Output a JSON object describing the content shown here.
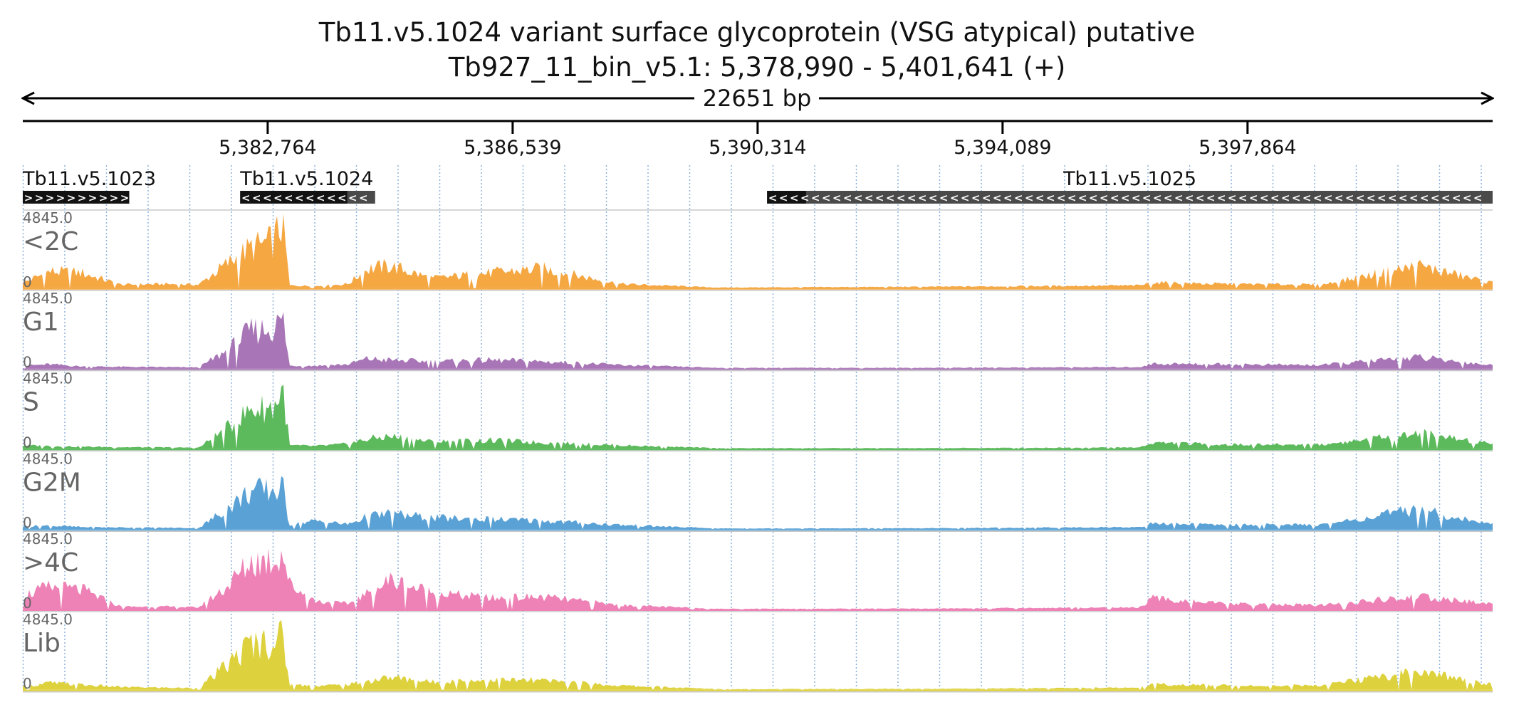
{
  "chart_data": {
    "type": "area",
    "title": "Tb11.v5.1024  variant surface glycoprotein (VSG  atypical)  putative",
    "subtitle": "Tb927_11_bin_v5.1: 5,378,990 - 5,401,641 (+)",
    "span_label": "22651 bp",
    "xlim": [
      5378990,
      5401641
    ],
    "ticks": [
      {
        "value": 5382764,
        "label": "5,382,764"
      },
      {
        "value": 5386539,
        "label": "5,386,539"
      },
      {
        "value": 5390314,
        "label": "5,390,314"
      },
      {
        "value": 5394089,
        "label": "5,394,089"
      },
      {
        "value": 5397864,
        "label": "5,397,864"
      }
    ],
    "genes": [
      {
        "name": "Tb11.v5.1023",
        "strand": "+",
        "start": 5378990,
        "end": 5380630,
        "cds_start": 5378990,
        "cds_end": 5380630
      },
      {
        "name": "Tb11.v5.1024",
        "strand": "-",
        "start": 5382340,
        "end": 5384420,
        "cds_start": 5382340,
        "cds_end": 5383990
      },
      {
        "name": "Tb11.v5.1025",
        "strand": "-",
        "start": 5390460,
        "end": 5401641,
        "cds_start": 5390460,
        "cds_end": 5391060
      }
    ],
    "tracks": [
      {
        "name": "<2C",
        "color": "#F5A742",
        "ymax": 4845.0,
        "ymax_label": "4845.0",
        "ymin_label": "0"
      },
      {
        "name": "G1",
        "color": "#A876B6",
        "ymax": 4845.0,
        "ymax_label": "4845.0",
        "ymin_label": "0"
      },
      {
        "name": "S",
        "color": "#5CBA5C",
        "ymax": 4845.0,
        "ymax_label": "4845.0",
        "ymin_label": "0"
      },
      {
        "name": "G2M",
        "color": "#5AA2D6",
        "ymax": 4845.0,
        "ymax_label": "4845.0",
        "ymin_label": "0"
      },
      {
        "name": ">4C",
        "color": "#EE82B6",
        "ymax": 4845.0,
        "ymax_label": "4845.0",
        "ymin_label": "0"
      },
      {
        "name": "Lib",
        "color": "#DDD23E",
        "ymax": 4845.0,
        "ymax_label": "4845.0",
        "ymin_label": "0"
      }
    ],
    "signal_profiles": [
      {
        "pos": 5379000,
        "values": [
          400,
          200,
          250,
          200,
          1000,
          200
        ]
      },
      {
        "pos": 5379400,
        "values": [
          1200,
          300,
          200,
          250,
          1600,
          500
        ]
      },
      {
        "pos": 5379900,
        "values": [
          1100,
          150,
          150,
          150,
          1400,
          350
        ]
      },
      {
        "pos": 5380500,
        "values": [
          250,
          120,
          120,
          120,
          200,
          200
        ]
      },
      {
        "pos": 5381200,
        "values": [
          300,
          100,
          100,
          100,
          200,
          150
        ]
      },
      {
        "pos": 5381700,
        "values": [
          250,
          80,
          80,
          80,
          150,
          120
        ]
      },
      {
        "pos": 5382150,
        "values": [
          1800,
          1300,
          1500,
          1500,
          1700,
          1800
        ]
      },
      {
        "pos": 5382500,
        "values": [
          2900,
          2700,
          2800,
          2700,
          3400,
          3300
        ]
      },
      {
        "pos": 5382850,
        "values": [
          3400,
          2900,
          3000,
          2800,
          3600,
          3500
        ]
      },
      {
        "pos": 5383000,
        "values": [
          4845,
          3600,
          4300,
          2900,
          4200,
          3900
        ]
      },
      {
        "pos": 5383100,
        "values": [
          200,
          200,
          250,
          300,
          1800,
          350
        ]
      },
      {
        "pos": 5383500,
        "values": [
          150,
          200,
          200,
          600,
          600,
          300
        ]
      },
      {
        "pos": 5384000,
        "values": [
          300,
          300,
          350,
          350,
          400,
          350
        ]
      },
      {
        "pos": 5384300,
        "values": [
          1400,
          700,
          700,
          900,
          1100,
          600
        ]
      },
      {
        "pos": 5384650,
        "values": [
          1600,
          600,
          900,
          1100,
          2100,
          900
        ]
      },
      {
        "pos": 5385300,
        "values": [
          700,
          500,
          500,
          800,
          1200,
          550
        ]
      },
      {
        "pos": 5386200,
        "values": [
          1100,
          600,
          600,
          700,
          800,
          700
        ]
      },
      {
        "pos": 5387000,
        "values": [
          1400,
          500,
          450,
          600,
          900,
          650
        ]
      },
      {
        "pos": 5388200,
        "values": [
          300,
          250,
          250,
          300,
          300,
          300
        ]
      },
      {
        "pos": 5389700,
        "values": [
          50,
          50,
          50,
          50,
          50,
          50
        ]
      },
      {
        "pos": 5392800,
        "values": [
          100,
          50,
          50,
          60,
          60,
          60
        ]
      },
      {
        "pos": 5396200,
        "values": [
          200,
          100,
          100,
          150,
          150,
          150
        ]
      },
      {
        "pos": 5396400,
        "values": [
          400,
          350,
          450,
          400,
          800,
          400
        ]
      },
      {
        "pos": 5397500,
        "values": [
          300,
          300,
          300,
          300,
          400,
          300
        ]
      },
      {
        "pos": 5399000,
        "values": [
          250,
          250,
          300,
          300,
          300,
          300
        ]
      },
      {
        "pos": 5400500,
        "values": [
          1600,
          800,
          1100,
          1400,
          900,
          1300
        ]
      },
      {
        "pos": 5401600,
        "values": [
          400,
          250,
          400,
          350,
          400,
          400
        ]
      }
    ]
  }
}
